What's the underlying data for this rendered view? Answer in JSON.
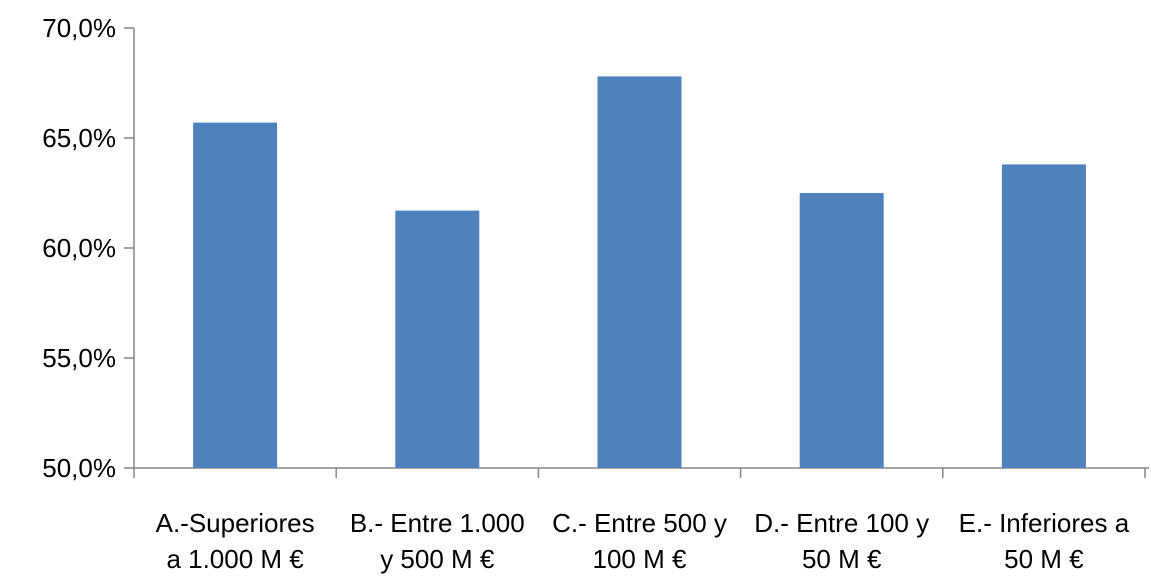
{
  "chart_data": {
    "type": "bar",
    "categories": [
      [
        "A.-Superiores",
        "a 1.000 M €"
      ],
      [
        "B.- Entre 1.000",
        "y 500 M €"
      ],
      [
        "C.- Entre 500 y",
        "100 M €"
      ],
      [
        "D.- Entre 100 y",
        "50 M €"
      ],
      [
        "E.- Inferiores a",
        "50 M €"
      ]
    ],
    "values": [
      65.7,
      61.7,
      67.8,
      62.5,
      63.8
    ],
    "ylim": [
      50,
      70
    ],
    "yticks": [
      50,
      55,
      60,
      65,
      70
    ],
    "ytick_labels": [
      "50,0%",
      "55,0%",
      "60,0%",
      "65,0%",
      "70,0%"
    ],
    "bar_color": "#4F81BD",
    "axis_color": "#868686",
    "grid": false,
    "legend": "none",
    "title": "",
    "xlabel": "",
    "ylabel": ""
  }
}
